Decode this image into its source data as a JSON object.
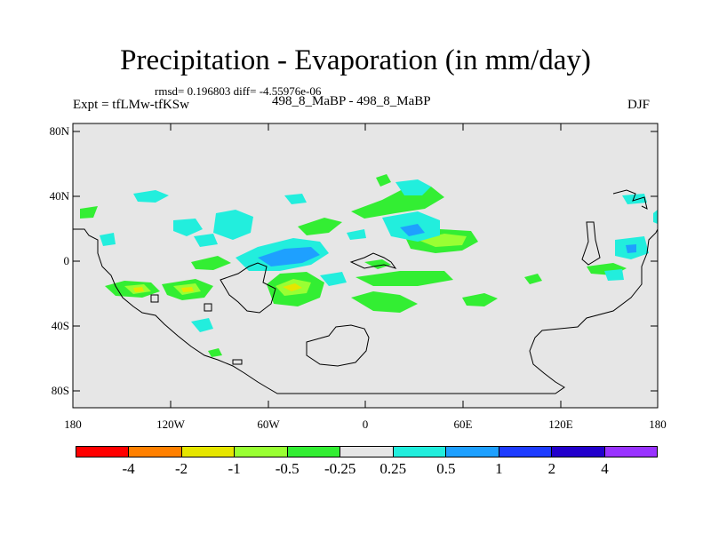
{
  "title": "Precipitation - Evaporation (in mm/day)",
  "subtitle_stats": "rmsd= 0.196803 diff= -4.55976e-06",
  "left_label": "Expt = tfLMw-tfKSw",
  "center_label": "498_8_MaBP - 498_8_MaBP",
  "right_label": "DJF",
  "y_axis_labels": [
    "80N",
    "40N",
    "0",
    "40S",
    "80S"
  ],
  "x_axis_labels": [
    "180",
    "120W",
    "60W",
    "0",
    "60E",
    "120E",
    "180"
  ],
  "colorbar": {
    "colors": [
      "#ff0000",
      "#ff8000",
      "#e6e600",
      "#99ff33",
      "#33ee33",
      "#e6e6e6",
      "#22eedd",
      "#1ea0ff",
      "#1e3cff",
      "#2200cc",
      "#9933ff"
    ],
    "labels": [
      "-4",
      "-2",
      "-1",
      "-0.5",
      "-0.25",
      "0.25",
      "0.5",
      "1",
      "2",
      "4"
    ]
  },
  "map_background_color": "#e6e6e6"
}
